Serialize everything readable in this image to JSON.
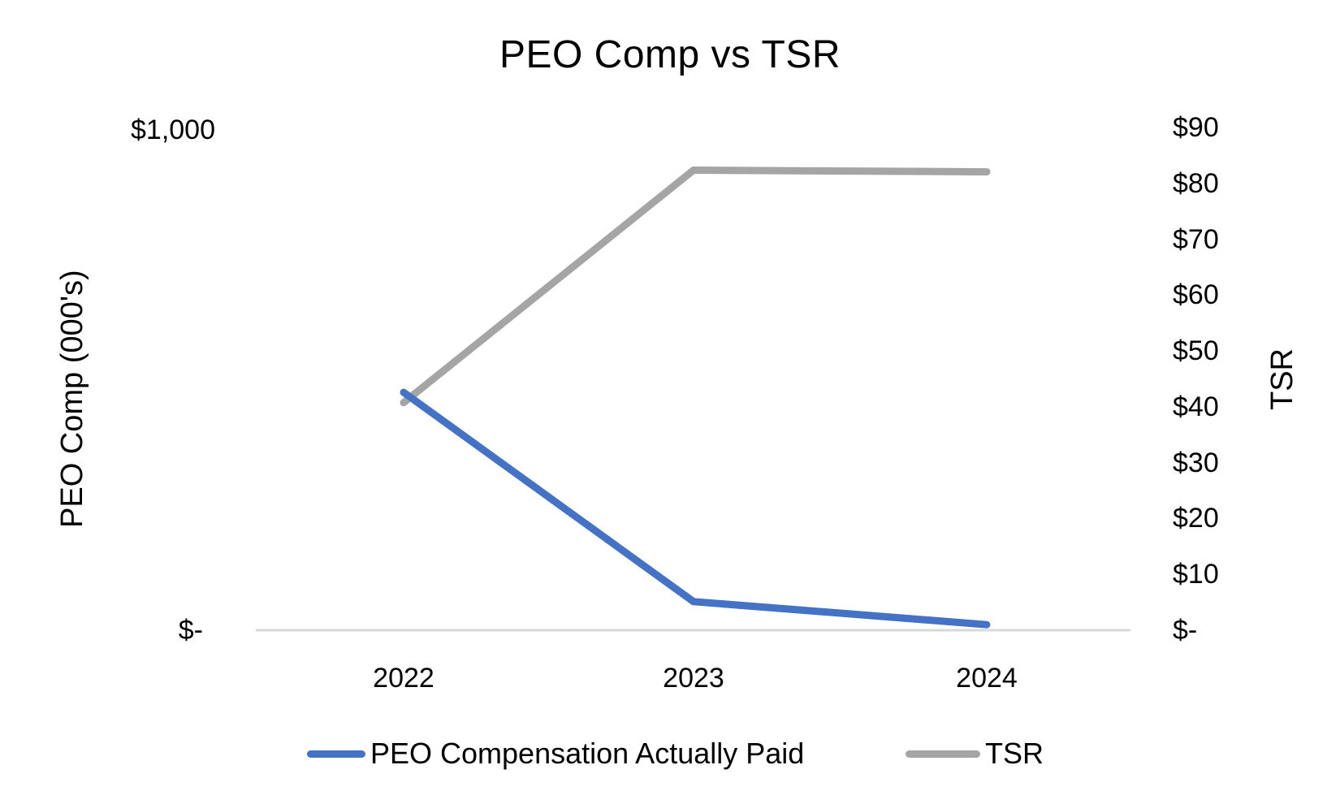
{
  "chart_data": {
    "type": "line",
    "title": "PEO Comp vs TSR",
    "categories": [
      "2022",
      "2023",
      "2024"
    ],
    "series": [
      {
        "name": "PEO Compensation Actually Paid",
        "axis": "left",
        "color": "#4472C4",
        "values": [
          474,
          57,
          11
        ]
      },
      {
        "name": "TSR",
        "axis": "right",
        "color": "#A5A5A5",
        "values": [
          40.8,
          82.5,
          82.2
        ]
      }
    ],
    "xlabel": "",
    "ylabel": "PEO Comp (000's)",
    "ylabel_right": "TSR",
    "ylim": [
      0,
      1000
    ],
    "ylim_right": [
      0,
      90
    ],
    "left_ticks": [
      "$-",
      "$1,000"
    ],
    "right_ticks": [
      "$-",
      "$10",
      "$20",
      "$30",
      "$40",
      "$50",
      "$60",
      "$70",
      "$80",
      "$90"
    ],
    "grid": false,
    "legend_position": "bottom"
  },
  "chart": {
    "title": "PEO Comp vs TSR",
    "ylabel_left": "PEO Comp (000's)",
    "ylabel_right": "TSR",
    "left_ticks": {
      "top": "$1,000",
      "bottom": "$-"
    },
    "right_ticks": [
      "$-",
      "$10",
      "$20",
      "$30",
      "$40",
      "$50",
      "$60",
      "$70",
      "$80",
      "$90"
    ],
    "x_ticks": [
      "2022",
      "2023",
      "2024"
    ],
    "legend": [
      {
        "label": "PEO Compensation Actually Paid",
        "color": "#4472C4"
      },
      {
        "label": "TSR",
        "color": "#A5A5A5"
      }
    ],
    "colors": {
      "axis_line": "#D9D9D9",
      "peo": "#4472C4",
      "tsr": "#A5A5A5"
    }
  }
}
